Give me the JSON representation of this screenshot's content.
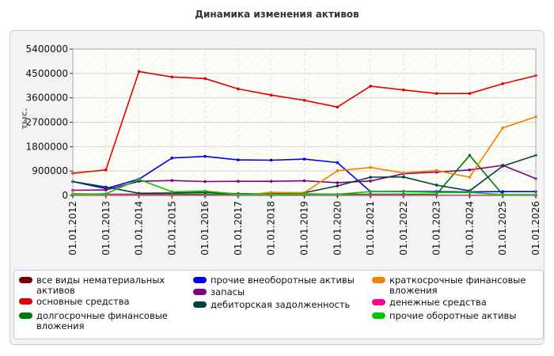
{
  "chart_data": {
    "type": "line",
    "title": "Динамика изменения активов",
    "ylabel": "тыс.",
    "xlabel": "",
    "ylim": [
      0,
      5400000
    ],
    "yticks": [
      0,
      900000,
      1800000,
      2700000,
      3600000,
      4500000,
      5400000
    ],
    "ytick_labels": [
      "0",
      "900000",
      "1800000",
      "2700000",
      "3600000",
      "4500000",
      "5400000"
    ],
    "categories": [
      "01.01.2012",
      "01.01.2013",
      "01.01.2014",
      "01.01.2015",
      "01.01.2016",
      "01.01.2017",
      "01.01.2018",
      "01.01.2019",
      "01.01.2020",
      "01.01.2021",
      "01.01.2022",
      "01.01.2023",
      "01.01.2024",
      "01.01.2025",
      "01.01.2026"
    ],
    "grid": true,
    "legend_position": "bottom",
    "series": [
      {
        "name": "все виды нематериальных активов",
        "color": "#7b0000",
        "values": [
          0,
          0,
          0,
          0,
          0,
          0,
          0,
          0,
          0,
          0,
          0,
          0,
          0,
          0,
          0
        ]
      },
      {
        "name": "основные средства",
        "color": "#e00000",
        "values": [
          820000,
          940000,
          4570000,
          4370000,
          4310000,
          3930000,
          3700000,
          3510000,
          3260000,
          4030000,
          3890000,
          3760000,
          3760000,
          4120000,
          4420000
        ]
      },
      {
        "name": "долгосрочные финансовые вложения",
        "color": "#007a00",
        "values": [
          40000,
          40000,
          40000,
          40000,
          40000,
          40000,
          40000,
          40000,
          40000,
          40000,
          40000,
          40000,
          1480000,
          30000,
          30000
        ]
      },
      {
        "name": "прочие внеоборотные активы",
        "color": "#0000ee",
        "values": [
          510000,
          250000,
          600000,
          1380000,
          1440000,
          1310000,
          1300000,
          1340000,
          1210000,
          140000,
          150000,
          140000,
          130000,
          140000,
          140000
        ]
      },
      {
        "name": "запасы",
        "color": "#800080",
        "values": [
          190000,
          200000,
          520000,
          550000,
          510000,
          520000,
          520000,
          540000,
          470000,
          530000,
          800000,
          860000,
          940000,
          1110000,
          620000
        ]
      },
      {
        "name": "дебиторская задолженность",
        "color": "#004040",
        "values": [
          510000,
          310000,
          80000,
          90000,
          110000,
          60000,
          60000,
          100000,
          350000,
          670000,
          680000,
          380000,
          170000,
          1080000,
          1480000
        ]
      },
      {
        "name": "краткосрочные финансовые вложения",
        "color": "#f08000",
        "values": [
          0,
          0,
          0,
          0,
          0,
          0,
          110000,
          100000,
          910000,
          1030000,
          830000,
          920000,
          670000,
          2490000,
          2900000
        ]
      },
      {
        "name": "денежные средства",
        "color": "#ff0090",
        "values": [
          60000,
          40000,
          20000,
          20000,
          0,
          20000,
          20000,
          10000,
          10000,
          20000,
          10000,
          10000,
          10000,
          10000,
          10000
        ]
      },
      {
        "name": "прочие оборотные активы",
        "color": "#00c800",
        "values": [
          40000,
          60000,
          590000,
          130000,
          160000,
          40000,
          40000,
          60000,
          40000,
          140000,
          140000,
          110000,
          110000,
          30000,
          30000
        ]
      }
    ]
  }
}
